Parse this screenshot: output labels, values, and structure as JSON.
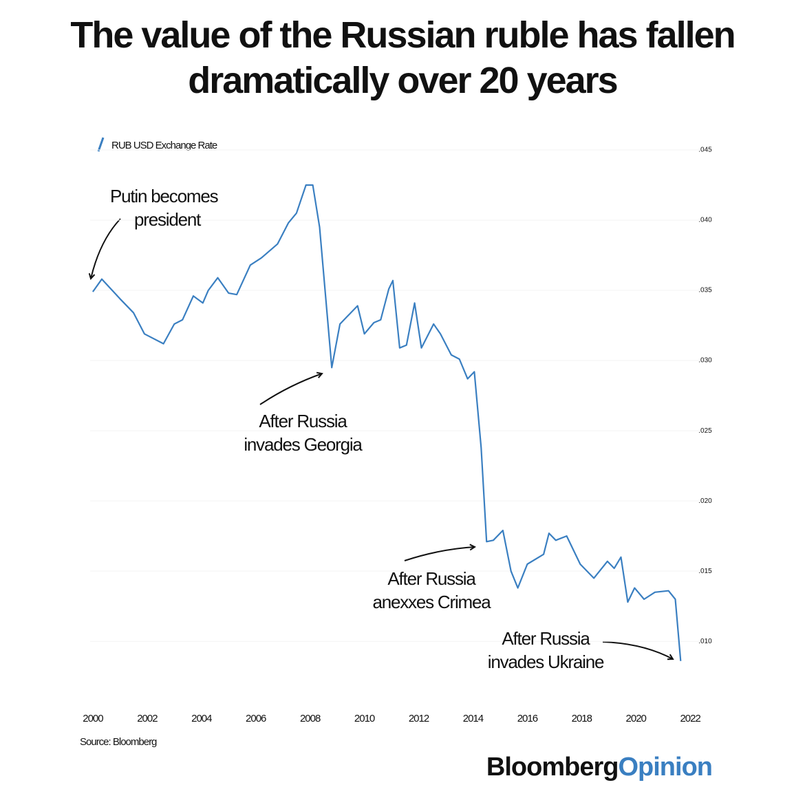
{
  "chart_data": {
    "type": "line",
    "title": "The value of the Russian ruble has fallen dramatically over 20 years",
    "x": [
      2000.0,
      2000.33,
      2001.0,
      2001.5,
      2001.9,
      2002.6,
      2003.0,
      2003.3,
      2003.7,
      2004.05,
      2004.25,
      2004.6,
      2005.0,
      2005.3,
      2005.8,
      2006.2,
      2006.8,
      2007.2,
      2007.5,
      2007.85,
      2008.1,
      2008.35,
      2008.8,
      2009.1,
      2009.35,
      2009.75,
      2010.0,
      2010.35,
      2010.6,
      2010.9,
      2011.05,
      2011.3,
      2011.55,
      2011.85,
      2012.1,
      2012.55,
      2012.8,
      2013.2,
      2013.5,
      2013.8,
      2014.05,
      2014.3,
      2014.5,
      2014.75,
      2015.1,
      2015.4,
      2015.65,
      2016.0,
      2016.6,
      2016.8,
      2017.05,
      2017.45,
      2017.95,
      2018.45,
      2018.95,
      2019.2,
      2019.45,
      2019.7,
      2019.95,
      2020.3,
      2020.7,
      2021.2,
      2021.45,
      2021.65
    ],
    "series": [
      {
        "name": "RUB USD Exchange Rate",
        "color": "#3a7fc1",
        "values": [
          0.0349,
          0.0358,
          0.0344,
          0.0334,
          0.0319,
          0.0312,
          0.0326,
          0.0329,
          0.0346,
          0.0341,
          0.035,
          0.0359,
          0.0348,
          0.0347,
          0.0368,
          0.0373,
          0.0383,
          0.0398,
          0.0405,
          0.0425,
          0.0425,
          0.0395,
          0.0295,
          0.0326,
          0.0331,
          0.0339,
          0.0319,
          0.0327,
          0.0329,
          0.0351,
          0.0357,
          0.0309,
          0.0311,
          0.0341,
          0.0309,
          0.0326,
          0.0319,
          0.0304,
          0.0301,
          0.0287,
          0.0292,
          0.0238,
          0.0171,
          0.0172,
          0.0179,
          0.015,
          0.0138,
          0.0155,
          0.0162,
          0.0177,
          0.0172,
          0.0175,
          0.0155,
          0.0145,
          0.0157,
          0.0152,
          0.016,
          0.0128,
          0.0138,
          0.013,
          0.0135,
          0.0136,
          0.013,
          0.0086
        ]
      }
    ],
    "xlim": [
      1999.9,
      2022.3
    ],
    "xticks": [
      2000,
      2002,
      2004,
      2006,
      2008,
      2010,
      2012,
      2014,
      2016,
      2018,
      2020,
      2022
    ],
    "ylim": [
      0.008,
      0.046
    ],
    "yticks": [
      {
        "value": 0.045,
        "label": ".045"
      },
      {
        "value": 0.04,
        "label": ".040"
      },
      {
        "value": 0.035,
        "label": ".035"
      },
      {
        "value": 0.03,
        "label": ".030"
      },
      {
        "value": 0.025,
        "label": ".025"
      },
      {
        "value": 0.02,
        "label": ".020"
      },
      {
        "value": 0.015,
        "label": ".015"
      },
      {
        "value": 0.01,
        "label": ".010"
      }
    ],
    "grid": true,
    "annotations": [
      {
        "text": [
          "Putin becomes",
          "president"
        ]
      },
      {
        "text": [
          "After Russia",
          "invades Georgia"
        ]
      },
      {
        "text": [
          "After Russia",
          "anexxes Crimea"
        ]
      },
      {
        "text": [
          "After Russia",
          "invades Ukraine"
        ]
      }
    ],
    "source": "Source: Bloomberg",
    "logo": {
      "text": "Bloomberg",
      "highlight": "Opinion"
    }
  }
}
